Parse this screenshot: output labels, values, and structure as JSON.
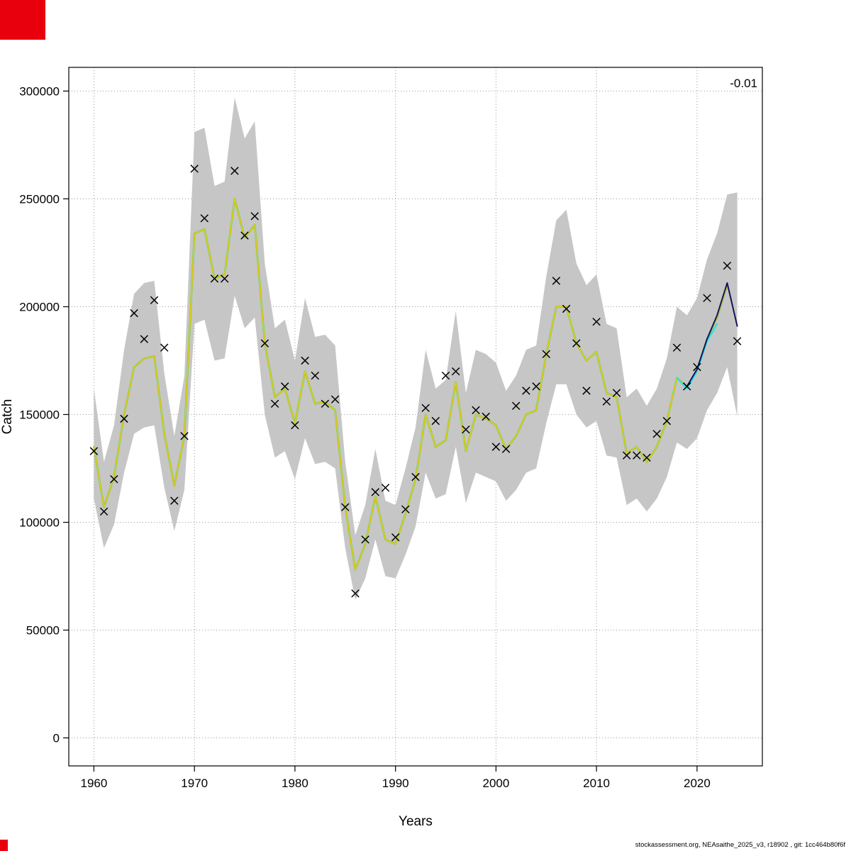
{
  "page": {
    "footer": "stockassessment.org, NEAsaithe_2025_v3, r18902 , git: 1cc464b80f6f",
    "artifact_color": "#e8000d"
  },
  "chart_data": {
    "type": "line",
    "title": "",
    "xlabel": "Years",
    "ylabel": "Catch",
    "annotation_top_right": "-0.01",
    "legend_position": "none",
    "grid": "dotted",
    "xlim": [
      1957.5,
      2026.5
    ],
    "ylim": [
      -13000,
      311000
    ],
    "x_ticks": [
      1960,
      1970,
      1980,
      1990,
      2000,
      2010,
      2020
    ],
    "y_ticks": [
      0,
      50000,
      100000,
      150000,
      200000,
      250000,
      300000
    ],
    "band": {
      "name": "confidence-band",
      "color": "#c6c6c6",
      "x0": 1960,
      "lower": [
        111000,
        88000,
        99000,
        123000,
        141000,
        144000,
        145000,
        116000,
        96000,
        115000,
        192000,
        194000,
        175000,
        176000,
        205000,
        190000,
        195000,
        150000,
        130000,
        133000,
        120000,
        139000,
        127000,
        128000,
        125000,
        88000,
        64000,
        74000,
        92000,
        75000,
        74000,
        85000,
        98000,
        123000,
        111000,
        113000,
        135000,
        109000,
        123000,
        121000,
        119000,
        110000,
        115000,
        123000,
        125000,
        146000,
        164000,
        164000,
        150000,
        144000,
        147000,
        131000,
        130000,
        108000,
        111000,
        105000,
        111000,
        121000,
        137000,
        134000,
        139000,
        152000,
        160000,
        172000,
        149000
      ],
      "upper": [
        162000,
        128000,
        145000,
        180000,
        206000,
        211000,
        212000,
        169000,
        140000,
        168000,
        281000,
        283000,
        256000,
        258000,
        297000,
        278000,
        286000,
        220000,
        190000,
        194000,
        175000,
        204000,
        186000,
        187000,
        182000,
        128000,
        94000,
        108000,
        134000,
        110000,
        108000,
        125000,
        144000,
        180000,
        162000,
        166000,
        198000,
        160000,
        180000,
        178000,
        174000,
        161000,
        168000,
        180000,
        182000,
        214000,
        240000,
        245000,
        220000,
        210000,
        215000,
        192000,
        190000,
        158000,
        162000,
        154000,
        162000,
        176000,
        200000,
        196000,
        204000,
        222000,
        234000,
        252000,
        253000
      ]
    },
    "series": [
      {
        "name": "estimate-green",
        "color": "#61D04F",
        "width": 2.6,
        "x0": 1960,
        "values": [
          135000,
          107000,
          121000,
          150000,
          172000,
          176000,
          177000,
          141000,
          117000,
          140000,
          234000,
          236000,
          213000,
          215000,
          250000,
          232000,
          238000,
          183000,
          158000,
          162000,
          146000,
          170000,
          155000,
          156000,
          152000,
          107000,
          78000,
          90000,
          112000,
          92000,
          90000,
          104000,
          120000,
          150000,
          135000,
          138000,
          165000,
          133000,
          150000,
          148000,
          145000,
          134000,
          140000,
          150000,
          152000,
          178000,
          200000,
          200000,
          183000,
          175000,
          179000,
          160000,
          158000,
          132000,
          135000,
          128000,
          135000,
          147000,
          167000,
          163000,
          170000,
          185000,
          195000,
          210000
        ]
      },
      {
        "name": "estimate-yellow",
        "color": "#F5C710",
        "width": 1.5,
        "x0": 1960,
        "values": [
          135000,
          107000,
          121000,
          150000,
          172000,
          176000,
          177000,
          141000,
          117000,
          140000,
          234000,
          236000,
          213000,
          215000,
          250000,
          232000,
          238000,
          183000,
          158000,
          162000,
          146000,
          170000,
          155000,
          156000,
          152000,
          107000,
          78000,
          90000,
          112000,
          92000,
          90000,
          104000,
          120000,
          150000,
          135000,
          138000,
          165000,
          133000,
          150000,
          148000,
          145000,
          134000,
          140000,
          150000,
          152000,
          178000,
          200000,
          200000,
          183000,
          175000,
          179000,
          160000,
          158000,
          132000,
          135000,
          128000,
          135000,
          147000,
          167000,
          163000,
          170000,
          185000,
          195000,
          210000
        ]
      },
      {
        "name": "retro-cyan",
        "color": "#28E2E5",
        "width": 2.2,
        "x0": 2018,
        "values": [
          167000,
          162000,
          170000,
          184000,
          192000
        ]
      },
      {
        "name": "forecast-dark",
        "color": "#14145a",
        "width": 2.0,
        "x0": 2019,
        "values": [
          163000,
          171000,
          185000,
          196000,
          211000,
          191000
        ]
      }
    ],
    "observed": {
      "name": "observed-catch",
      "marker": "x",
      "color": "#000000",
      "x0": 1960,
      "values": [
        133000,
        105000,
        120000,
        148000,
        197000,
        185000,
        203000,
        181000,
        110000,
        140000,
        264000,
        241000,
        213000,
        213000,
        263000,
        233000,
        242000,
        183000,
        155000,
        163000,
        145000,
        175000,
        168000,
        155000,
        157000,
        107000,
        67000,
        92000,
        114000,
        116000,
        93000,
        106000,
        121000,
        153000,
        147000,
        168000,
        170000,
        143000,
        152000,
        149000,
        135000,
        134000,
        154000,
        161000,
        163000,
        178000,
        212000,
        199000,
        183000,
        161000,
        193000,
        156000,
        160000,
        131000,
        131000,
        130000,
        141000,
        147000,
        181000,
        163000,
        172000,
        204000,
        null,
        219000,
        184000
      ]
    }
  }
}
